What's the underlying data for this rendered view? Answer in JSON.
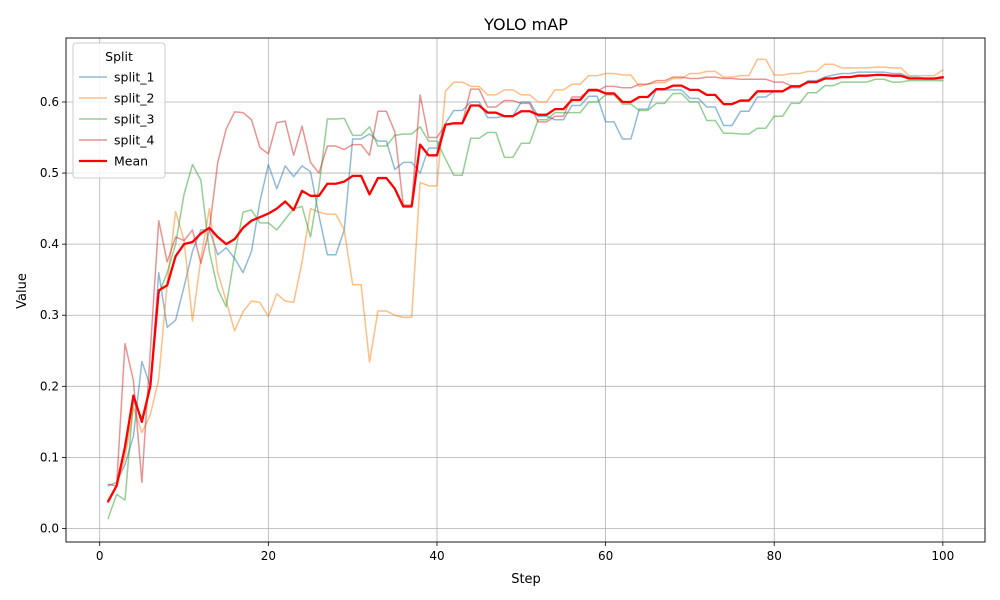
{
  "chart_data": {
    "type": "line",
    "title": "YOLO mAP",
    "xlabel": "Step",
    "ylabel": "Value",
    "xlim": [
      -4,
      105
    ],
    "ylim": [
      -0.019,
      0.69
    ],
    "xticks": [
      0,
      20,
      40,
      60,
      80,
      100
    ],
    "yticks": [
      0.0,
      0.1,
      0.2,
      0.3,
      0.4,
      0.5,
      0.6
    ],
    "grid": true,
    "legend": {
      "title": "Split",
      "placement": "top-left"
    },
    "x": [
      1,
      2,
      3,
      4,
      5,
      6,
      7,
      8,
      9,
      10,
      11,
      12,
      13,
      14,
      15,
      16,
      17,
      18,
      19,
      20,
      21,
      22,
      23,
      24,
      25,
      26,
      27,
      28,
      29,
      30,
      31,
      32,
      33,
      34,
      35,
      36,
      37,
      38,
      39,
      40,
      41,
      42,
      43,
      44,
      45,
      46,
      47,
      48,
      49,
      50,
      51,
      52,
      53,
      54,
      55,
      56,
      57,
      58,
      59,
      60,
      61,
      62,
      63,
      64,
      65,
      66,
      67,
      68,
      69,
      70,
      71,
      72,
      73,
      74,
      75,
      76,
      77,
      78,
      79,
      80,
      81,
      82,
      83,
      84,
      85,
      86,
      87,
      88,
      89,
      90,
      91,
      92,
      93,
      94,
      95,
      96,
      97,
      98,
      99,
      100
    ],
    "series": [
      {
        "name": "split_1",
        "color": "#1f77b4",
        "opacity": 0.5,
        "width": 1.5,
        "values": [
          0.06,
          0.065,
          0.09,
          0.13,
          0.235,
          0.2,
          0.36,
          0.283,
          0.293,
          0.34,
          0.39,
          0.42,
          0.42,
          0.385,
          0.395,
          0.38,
          0.36,
          0.39,
          0.46,
          0.512,
          0.478,
          0.51,
          0.495,
          0.51,
          0.502,
          0.44,
          0.385,
          0.385,
          0.42,
          0.548,
          0.548,
          0.555,
          0.545,
          0.545,
          0.505,
          0.515,
          0.515,
          0.5,
          0.535,
          0.535,
          0.57,
          0.588,
          0.588,
          0.6,
          0.6,
          0.578,
          0.578,
          0.58,
          0.58,
          0.6,
          0.6,
          0.58,
          0.58,
          0.575,
          0.575,
          0.595,
          0.595,
          0.608,
          0.608,
          0.572,
          0.572,
          0.548,
          0.548,
          0.59,
          0.59,
          0.617,
          0.617,
          0.617,
          0.617,
          0.605,
          0.605,
          0.593,
          0.593,
          0.567,
          0.567,
          0.587,
          0.587,
          0.607,
          0.607,
          0.615,
          0.615,
          0.62,
          0.62,
          0.63,
          0.63,
          0.635,
          0.638,
          0.64,
          0.64,
          0.642,
          0.642,
          0.642,
          0.642,
          0.64,
          0.64,
          0.635,
          0.635,
          0.633,
          0.633,
          0.633
        ]
      },
      {
        "name": "split_2",
        "color": "#ff7f0e",
        "opacity": 0.5,
        "width": 1.5,
        "values": [
          0.04,
          0.06,
          0.1,
          0.17,
          0.135,
          0.16,
          0.21,
          0.345,
          0.446,
          0.405,
          0.292,
          0.38,
          0.45,
          0.36,
          0.32,
          0.278,
          0.305,
          0.32,
          0.318,
          0.298,
          0.33,
          0.32,
          0.318,
          0.375,
          0.45,
          0.445,
          0.442,
          0.442,
          0.42,
          0.343,
          0.343,
          0.234,
          0.306,
          0.306,
          0.3,
          0.297,
          0.297,
          0.487,
          0.482,
          0.482,
          0.615,
          0.628,
          0.628,
          0.622,
          0.622,
          0.61,
          0.61,
          0.617,
          0.617,
          0.61,
          0.61,
          0.6,
          0.6,
          0.617,
          0.617,
          0.625,
          0.625,
          0.637,
          0.637,
          0.64,
          0.64,
          0.638,
          0.638,
          0.622,
          0.625,
          0.627,
          0.627,
          0.633,
          0.633,
          0.64,
          0.64,
          0.643,
          0.643,
          0.635,
          0.635,
          0.637,
          0.637,
          0.66,
          0.66,
          0.638,
          0.638,
          0.64,
          0.64,
          0.643,
          0.643,
          0.653,
          0.653,
          0.648,
          0.648,
          0.648,
          0.648,
          0.649,
          0.649,
          0.648,
          0.648,
          0.637,
          0.637,
          0.637,
          0.637,
          0.645
        ]
      },
      {
        "name": "split_3",
        "color": "#2ca02c",
        "opacity": 0.5,
        "width": 1.5,
        "values": [
          0.014,
          0.048,
          0.04,
          0.18,
          0.155,
          0.2,
          0.33,
          0.36,
          0.4,
          0.47,
          0.512,
          0.49,
          0.39,
          0.337,
          0.312,
          0.385,
          0.445,
          0.448,
          0.43,
          0.43,
          0.42,
          0.435,
          0.45,
          0.453,
          0.41,
          0.48,
          0.576,
          0.576,
          0.577,
          0.553,
          0.553,
          0.565,
          0.538,
          0.538,
          0.553,
          0.555,
          0.555,
          0.565,
          0.545,
          0.545,
          0.52,
          0.497,
          0.497,
          0.549,
          0.549,
          0.557,
          0.557,
          0.522,
          0.522,
          0.542,
          0.542,
          0.575,
          0.575,
          0.585,
          0.585,
          0.585,
          0.585,
          0.6,
          0.6,
          0.61,
          0.61,
          0.597,
          0.597,
          0.588,
          0.588,
          0.598,
          0.598,
          0.612,
          0.612,
          0.6,
          0.6,
          0.574,
          0.574,
          0.556,
          0.556,
          0.555,
          0.555,
          0.563,
          0.563,
          0.58,
          0.58,
          0.598,
          0.598,
          0.613,
          0.613,
          0.623,
          0.623,
          0.628,
          0.628,
          0.628,
          0.628,
          0.632,
          0.632,
          0.628,
          0.628,
          0.63,
          0.63,
          0.63,
          0.63,
          0.63
        ]
      },
      {
        "name": "split_4",
        "color": "#d62728",
        "opacity": 0.5,
        "width": 1.5,
        "values": [
          0.062,
          0.06,
          0.26,
          0.208,
          0.065,
          0.25,
          0.433,
          0.375,
          0.41,
          0.405,
          0.42,
          0.373,
          0.42,
          0.515,
          0.562,
          0.586,
          0.585,
          0.575,
          0.536,
          0.527,
          0.571,
          0.573,
          0.525,
          0.566,
          0.515,
          0.5,
          0.538,
          0.538,
          0.533,
          0.54,
          0.54,
          0.525,
          0.587,
          0.587,
          0.558,
          0.455,
          0.455,
          0.61,
          0.55,
          0.55,
          0.568,
          0.57,
          0.57,
          0.618,
          0.618,
          0.593,
          0.593,
          0.602,
          0.602,
          0.598,
          0.598,
          0.572,
          0.572,
          0.58,
          0.58,
          0.607,
          0.607,
          0.615,
          0.615,
          0.622,
          0.622,
          0.62,
          0.62,
          0.625,
          0.625,
          0.63,
          0.63,
          0.635,
          0.635,
          0.633,
          0.633,
          0.635,
          0.635,
          0.633,
          0.633,
          0.632,
          0.632,
          0.632,
          0.632,
          0.628,
          0.628,
          0.623,
          0.623,
          0.628,
          0.628,
          0.633,
          0.633,
          0.635,
          0.635,
          0.637,
          0.637,
          0.638,
          0.638,
          0.636,
          0.636,
          0.633,
          0.633,
          0.632,
          0.632,
          0.633
        ]
      },
      {
        "name": "Mean",
        "color": "#ff0000",
        "opacity": 1,
        "width": 2.3,
        "values": [
          0.038,
          0.06,
          0.115,
          0.187,
          0.15,
          0.2,
          0.335,
          0.342,
          0.383,
          0.4,
          0.403,
          0.415,
          0.423,
          0.41,
          0.4,
          0.407,
          0.423,
          0.433,
          0.438,
          0.443,
          0.45,
          0.46,
          0.448,
          0.475,
          0.468,
          0.468,
          0.485,
          0.485,
          0.488,
          0.496,
          0.496,
          0.47,
          0.493,
          0.493,
          0.478,
          0.453,
          0.453,
          0.54,
          0.525,
          0.525,
          0.568,
          0.57,
          0.57,
          0.595,
          0.595,
          0.585,
          0.585,
          0.58,
          0.58,
          0.587,
          0.587,
          0.582,
          0.582,
          0.59,
          0.59,
          0.603,
          0.603,
          0.617,
          0.617,
          0.612,
          0.612,
          0.6,
          0.6,
          0.607,
          0.607,
          0.618,
          0.618,
          0.623,
          0.623,
          0.617,
          0.617,
          0.61,
          0.61,
          0.597,
          0.597,
          0.602,
          0.602,
          0.615,
          0.615,
          0.615,
          0.615,
          0.622,
          0.622,
          0.628,
          0.628,
          0.633,
          0.633,
          0.635,
          0.635,
          0.637,
          0.637,
          0.638,
          0.638,
          0.637,
          0.637,
          0.633,
          0.633,
          0.633,
          0.633,
          0.635
        ]
      }
    ]
  }
}
